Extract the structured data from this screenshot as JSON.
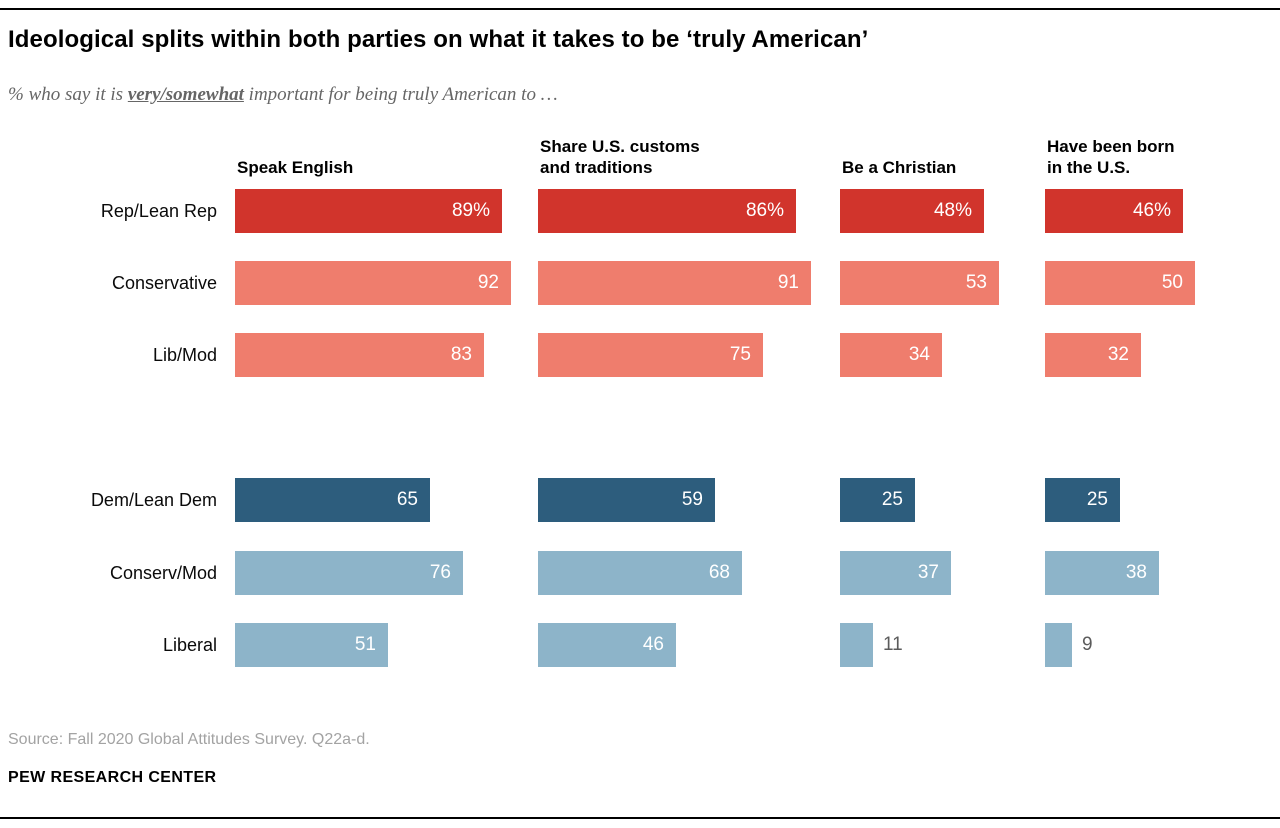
{
  "header": {
    "title": "Ideological splits within both parties on what it takes to be ‘truly American’",
    "subtitle_prefix": "% who say it is ",
    "subtitle_emphasis": "very/somewhat",
    "subtitle_suffix": " important for being truly American to …"
  },
  "chart_data": {
    "type": "bar",
    "orientation": "horizontal",
    "unit": "percent",
    "xlim": [
      0,
      100
    ],
    "columns": [
      "Speak English",
      "Share U.S. customs\nand traditions",
      "Be a Christian",
      "Have been born\nin the U.S."
    ],
    "rows": [
      {
        "label": "Rep/Lean Rep",
        "color_key": "dark_red",
        "values": [
          89,
          86,
          48,
          46
        ],
        "labels": [
          "89%",
          "86%",
          "48%",
          "46%"
        ]
      },
      {
        "label": "Conservative",
        "color_key": "salmon",
        "values": [
          92,
          91,
          53,
          50
        ],
        "labels": [
          "92",
          "91",
          "53",
          "50"
        ]
      },
      {
        "label": "Lib/Mod",
        "color_key": "salmon",
        "values": [
          83,
          75,
          34,
          32
        ],
        "labels": [
          "83",
          "75",
          "34",
          "32"
        ]
      },
      {
        "label": "Dem/Lean Dem",
        "color_key": "dark_blue",
        "values": [
          65,
          59,
          25,
          25
        ],
        "labels": [
          "65",
          "59",
          "25",
          "25"
        ]
      },
      {
        "label": "Conserv/Mod",
        "color_key": "light_blue",
        "values": [
          76,
          68,
          37,
          38
        ],
        "labels": [
          "76",
          "68",
          "37",
          "38"
        ]
      },
      {
        "label": "Liberal",
        "color_key": "light_blue",
        "values": [
          51,
          46,
          11,
          9
        ],
        "labels": [
          "51",
          "46",
          "11",
          "9"
        ]
      }
    ]
  },
  "colors": {
    "dark_red": "#d1342c",
    "salmon": "#ef7d6d",
    "dark_blue": "#2d5d7d",
    "light_blue": "#8db4c9",
    "outside_label": "#5b5b5b"
  },
  "footer": {
    "source": "Source: Fall 2020 Global Attitudes Survey. Q22a-d.",
    "brand": "PEW RESEARCH CENTER"
  }
}
